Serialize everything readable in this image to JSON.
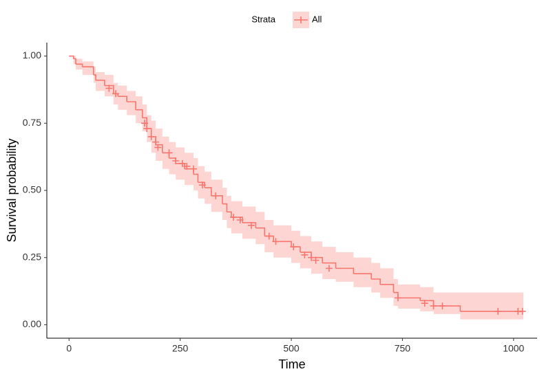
{
  "chart_data": {
    "type": "survival",
    "x_label": "Time",
    "y_label": "Survival probability",
    "legend_title": "Strata",
    "legend_position": "top",
    "series": [
      {
        "name": "All",
        "color": "#F8766D",
        "x": [
          0,
          10,
          15,
          30,
          55,
          60,
          80,
          100,
          110,
          130,
          150,
          165,
          175,
          185,
          195,
          210,
          225,
          240,
          260,
          280,
          290,
          305,
          320,
          345,
          355,
          365,
          390,
          420,
          440,
          460,
          500,
          520,
          545,
          570,
          600,
          640,
          680,
          700,
          730,
          740,
          790,
          820,
          880,
          1022
        ],
        "values": [
          1.0,
          0.99,
          0.97,
          0.96,
          0.93,
          0.91,
          0.89,
          0.86,
          0.85,
          0.83,
          0.8,
          0.77,
          0.73,
          0.7,
          0.67,
          0.64,
          0.62,
          0.6,
          0.58,
          0.56,
          0.53,
          0.51,
          0.48,
          0.45,
          0.42,
          0.4,
          0.38,
          0.36,
          0.33,
          0.31,
          0.29,
          0.27,
          0.25,
          0.23,
          0.21,
          0.19,
          0.17,
          0.15,
          0.12,
          0.1,
          0.09,
          0.07,
          0.05,
          0.05
        ],
        "lower": [
          1.0,
          0.97,
          0.95,
          0.93,
          0.9,
          0.87,
          0.85,
          0.82,
          0.8,
          0.78,
          0.75,
          0.72,
          0.68,
          0.64,
          0.61,
          0.58,
          0.56,
          0.54,
          0.52,
          0.5,
          0.47,
          0.45,
          0.42,
          0.39,
          0.36,
          0.34,
          0.32,
          0.3,
          0.27,
          0.25,
          0.23,
          0.21,
          0.19,
          0.17,
          0.16,
          0.14,
          0.12,
          0.1,
          0.07,
          0.06,
          0.05,
          0.04,
          0.02,
          0.02
        ],
        "upper": [
          1.0,
          1.0,
          0.99,
          0.98,
          0.96,
          0.94,
          0.93,
          0.9,
          0.89,
          0.87,
          0.85,
          0.82,
          0.78,
          0.76,
          0.73,
          0.7,
          0.68,
          0.66,
          0.64,
          0.62,
          0.59,
          0.57,
          0.54,
          0.51,
          0.48,
          0.46,
          0.44,
          0.42,
          0.39,
          0.37,
          0.35,
          0.33,
          0.31,
          0.29,
          0.27,
          0.25,
          0.23,
          0.21,
          0.17,
          0.15,
          0.14,
          0.12,
          0.12,
          0.12
        ],
        "censor_x": [
          90,
          105,
          170,
          175,
          185,
          195,
          200,
          225,
          240,
          255,
          265,
          280,
          300,
          330,
          370,
          385,
          410,
          450,
          465,
          505,
          530,
          545,
          555,
          585,
          740,
          800,
          820,
          840,
          965,
          1010,
          1020
        ],
        "censor_values": [
          0.88,
          0.86,
          0.75,
          0.73,
          0.7,
          0.68,
          0.66,
          0.64,
          0.61,
          0.6,
          0.59,
          0.58,
          0.52,
          0.48,
          0.4,
          0.39,
          0.37,
          0.33,
          0.31,
          0.29,
          0.26,
          0.25,
          0.24,
          0.21,
          0.1,
          0.08,
          0.07,
          0.07,
          0.05,
          0.05,
          0.05
        ]
      }
    ],
    "xlim": [
      -50,
      1053
    ],
    "ylim": [
      -0.05,
      1.05
    ],
    "xticks": [
      0,
      250,
      500,
      750,
      1000
    ],
    "yticks": [
      {
        "value": 0,
        "label": "0.00"
      },
      {
        "value": 0.25,
        "label": "0.25"
      },
      {
        "value": 0.5,
        "label": "0.50"
      },
      {
        "value": 0.75,
        "label": "0.75"
      },
      {
        "value": 1,
        "label": "1.00"
      }
    ],
    "grid": false
  }
}
